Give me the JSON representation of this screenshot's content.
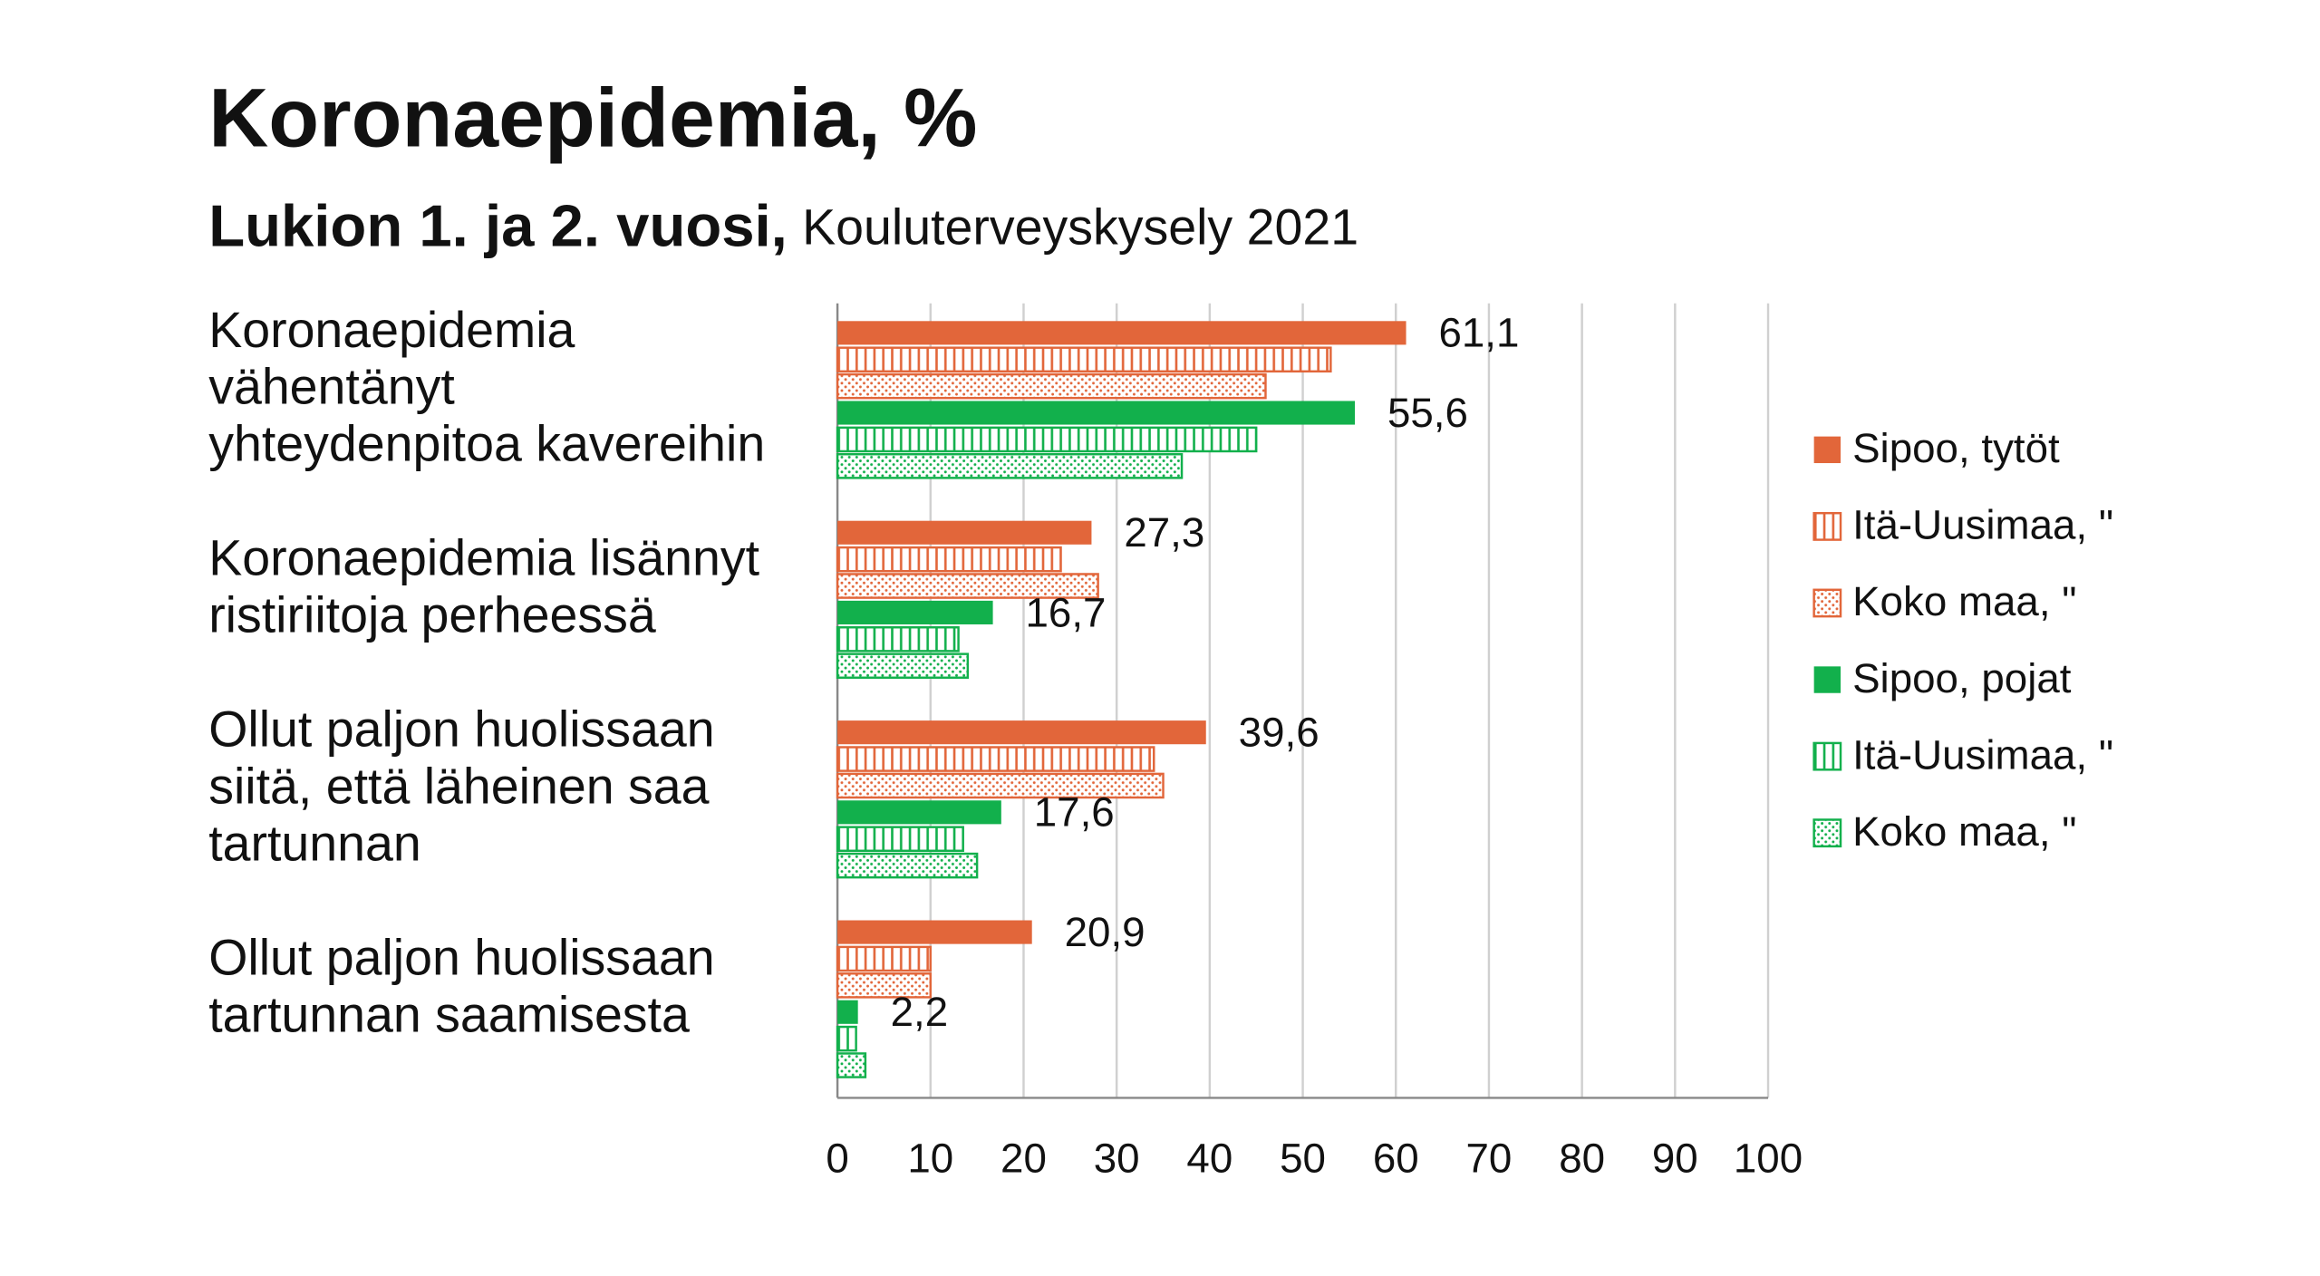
{
  "chart_data": {
    "type": "bar",
    "orientation": "horizontal",
    "title": "Koronaepidemia, %",
    "subtitle": "Lukion 1. ja 2. vuosi,",
    "source": "Kouluterveyskysely 2021",
    "categories": [
      [
        "Koronaepidemia",
        "vähentänyt",
        "yhteydenpitoa kavereihin"
      ],
      [
        "Koronaepidemia lisännyt",
        "ristiriitoja perheessä"
      ],
      [
        "Ollut paljon huolissaan",
        "siitä, että läheinen saa",
        "tartunnan"
      ],
      [
        "Ollut paljon huolissaan",
        "tartunnan saamisesta"
      ]
    ],
    "series": [
      {
        "name": "Sipoo, tytöt",
        "color": "#e2663a",
        "pattern": "solid",
        "values": [
          61.1,
          27.3,
          39.6,
          20.9
        ],
        "value_labels": [
          "61,1",
          "27,3",
          "39,6",
          "20,9"
        ]
      },
      {
        "name": "Itä-Uusimaa, \"",
        "color": "#e2663a",
        "pattern": "vertical",
        "values": [
          53,
          24,
          34,
          10
        ]
      },
      {
        "name": "Koko maa, \"",
        "color": "#e2663a",
        "pattern": "dots",
        "values": [
          46,
          28,
          35,
          10
        ]
      },
      {
        "name": "Sipoo, pojat",
        "color": "#12b04c",
        "pattern": "solid",
        "values": [
          55.6,
          16.7,
          17.6,
          2.2
        ],
        "value_labels": [
          "55,6",
          "16,7",
          "17,6",
          "2,2"
        ]
      },
      {
        "name": "Itä-Uusimaa, \"",
        "color": "#12b04c",
        "pattern": "vertical",
        "values": [
          45,
          13,
          13.5,
          2
        ]
      },
      {
        "name": "Koko maa, \"",
        "color": "#12b04c",
        "pattern": "dots",
        "values": [
          37,
          14,
          15,
          3
        ]
      }
    ],
    "xlim": [
      0,
      100
    ],
    "xticks": [
      0,
      10,
      20,
      30,
      40,
      50,
      60,
      70,
      80,
      90,
      100
    ],
    "grid": true,
    "legend": "right"
  }
}
